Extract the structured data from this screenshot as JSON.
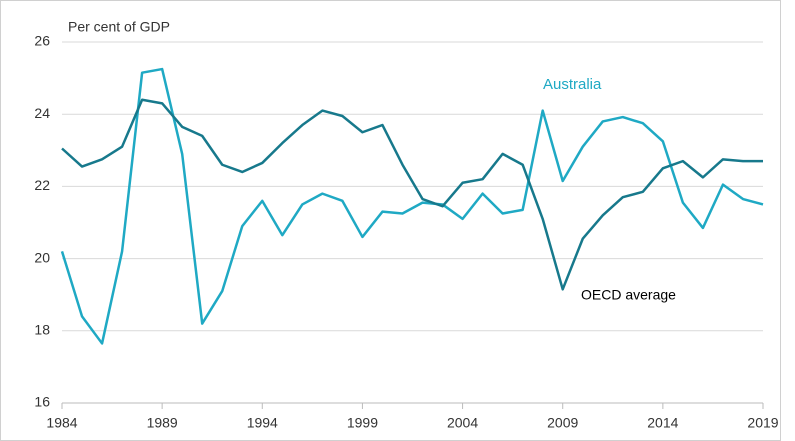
{
  "chart_data": {
    "type": "line",
    "y_label": "Per cent of GDP",
    "x": [
      1984,
      1985,
      1986,
      1987,
      1988,
      1989,
      1990,
      1991,
      1992,
      1993,
      1994,
      1995,
      1996,
      1997,
      1998,
      1999,
      2000,
      2001,
      2002,
      2003,
      2004,
      2005,
      2006,
      2007,
      2008,
      2009,
      2010,
      2011,
      2012,
      2013,
      2014,
      2015,
      2016,
      2017,
      2018,
      2019
    ],
    "series": [
      {
        "name": "Australia",
        "color": "#1fa9c4",
        "values": [
          20.2,
          18.4,
          17.65,
          20.2,
          25.15,
          25.25,
          22.9,
          18.2,
          19.1,
          20.9,
          21.6,
          20.65,
          21.5,
          21.8,
          21.6,
          20.6,
          21.3,
          21.25,
          21.55,
          21.5,
          21.1,
          21.8,
          21.25,
          21.35,
          24.1,
          22.15,
          23.1,
          23.8,
          23.92,
          23.75,
          23.25,
          21.55,
          20.85,
          22.05,
          21.65,
          21.5
        ]
      },
      {
        "name": "OECD average",
        "color": "#17798c",
        "values": [
          23.05,
          22.55,
          22.75,
          23.1,
          24.4,
          24.3,
          23.65,
          23.4,
          22.6,
          22.4,
          22.65,
          23.2,
          23.7,
          24.1,
          23.95,
          23.5,
          23.7,
          22.6,
          21.65,
          21.45,
          22.1,
          22.2,
          22.9,
          22.6,
          21.1,
          19.15,
          20.55,
          21.2,
          21.7,
          21.85,
          22.5,
          22.7,
          22.25,
          22.75,
          22.7,
          22.7
        ]
      }
    ],
    "xlim": [
      1984,
      2019
    ],
    "xticks": [
      1984,
      1989,
      1994,
      1999,
      2004,
      2009,
      2014,
      2019
    ],
    "ylim": [
      16,
      26
    ],
    "yticks": [
      16,
      18,
      20,
      22,
      24,
      26
    ],
    "grid": true
  }
}
